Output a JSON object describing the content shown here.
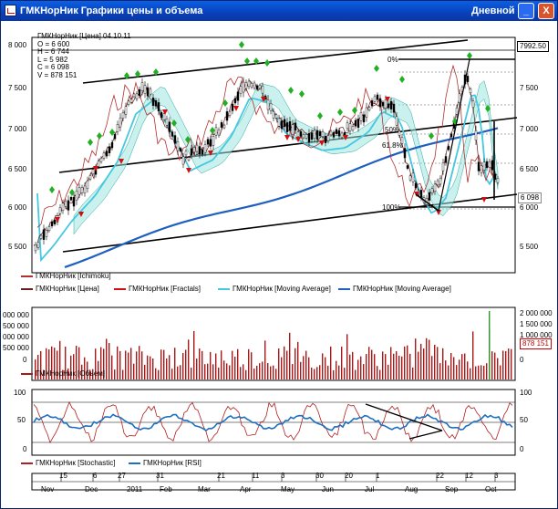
{
  "window": {
    "title": "ГМКНорНик Графики цены и объема",
    "period": "Дневной",
    "buttons": {
      "minimize": "_",
      "maximize": "□",
      "close": "X"
    }
  },
  "colors": {
    "close_line": "#6b1c1c",
    "ichimoku": "#b03030",
    "fractals": "#d01010",
    "ma_fast": "#44c8e0",
    "ma_slow": "#1f5fbf",
    "volume": "#a81818",
    "stochastic": "#b02020",
    "rsi": "#1f6fbf",
    "fractal_up": "#22b022"
  },
  "price_panel": {
    "info": [
      "ГМКНорНик [Цена] 04.10.11",
      "O = 6 600",
      "H = 6 744",
      "L = 5 982",
      "C = 6 098",
      "V = 878 151"
    ],
    "left_ticks": [
      "8 000",
      "7 500",
      "7 000",
      "6 500",
      "6 000",
      "5 500"
    ],
    "right_ticks": [
      "7 500",
      "7 000",
      "6 500",
      "6 000",
      "5 500"
    ],
    "last_high_box": "7992.50",
    "last_price_box": "6 098",
    "fib_labels": [
      "0%",
      "50%",
      "61.8%",
      "100%"
    ],
    "legend": [
      "ГМКНорНик [Ichimoku]",
      "ГМКНорНик [Цена]",
      "ГМКНорНик [Fractals]",
      "ГМКНорНик [Moving Average]",
      "ГМКНорНик [Moving Average]"
    ]
  },
  "volume_panel": {
    "left_ticks": [
      "000 000",
      "500 000",
      "000 000",
      "500 000",
      "0"
    ],
    "right_ticks": [
      "2 000 000",
      "1 500 000",
      "1 000 000",
      "0"
    ],
    "last_volume_box": "878 151",
    "legend": [
      "ГМКНорНик [Объем]"
    ]
  },
  "osc_panel": {
    "left_ticks": [
      "100",
      "50",
      "0"
    ],
    "right_ticks": [
      "100",
      "50",
      "0"
    ],
    "legend": [
      "ГМКНорНик [Stochastic]",
      "ГМКНорНик [RSI]"
    ]
  },
  "time_axis": {
    "days": [
      "15",
      "6",
      "27",
      "31",
      "21",
      "11",
      "3",
      "30",
      "20",
      "1",
      "22",
      "12",
      "3"
    ],
    "months": [
      "Nov",
      "Dec",
      "2011",
      "Feb",
      "Mar",
      "Apr",
      "May",
      "Jun",
      "Jul",
      "Aug",
      "Sep",
      "Oct"
    ]
  }
}
